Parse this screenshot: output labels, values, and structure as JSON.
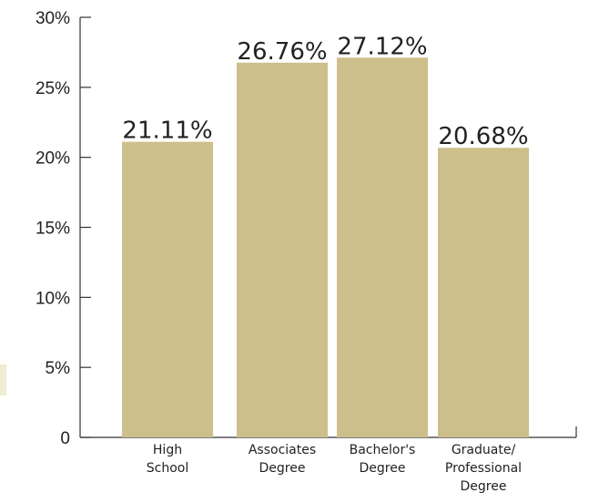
{
  "chart_data": {
    "type": "bar",
    "title": "",
    "xlabel": "",
    "ylabel": "",
    "categories": [
      [
        "High",
        "School"
      ],
      [
        "Associates",
        "Degree"
      ],
      [
        "Bachelor's",
        "Degree"
      ],
      [
        "Graduate/",
        "Professional",
        "Degree"
      ]
    ],
    "values": [
      21.11,
      26.76,
      27.12,
      20.68
    ],
    "value_labels": [
      "21.11%",
      "26.76%",
      "27.12%",
      "20.68%"
    ],
    "ylim": [
      0,
      30
    ],
    "y_ticks": [
      {
        "value": 0,
        "label": "0"
      },
      {
        "value": 5,
        "label": "5%"
      },
      {
        "value": 10,
        "label": "10%"
      },
      {
        "value": 15,
        "label": "15%"
      },
      {
        "value": 20,
        "label": "20%"
      },
      {
        "value": 25,
        "label": "25%"
      },
      {
        "value": 30,
        "label": "30%"
      }
    ],
    "grid": false,
    "legend": "none",
    "colors": {
      "bar": "#cdbf8b",
      "axis": "#333333",
      "text": "#222222"
    }
  }
}
